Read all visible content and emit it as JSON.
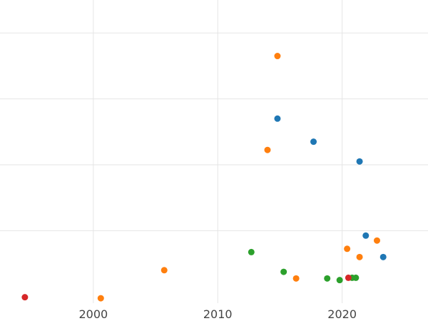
{
  "chart_data": {
    "type": "scatter",
    "title": "",
    "xlabel": "",
    "ylabel": "",
    "xlim": [
      1992.5,
      2026.9
    ],
    "ylim": [
      -0.2,
      9.0
    ],
    "grid": true,
    "x_ticks": [
      2000,
      2010,
      2020
    ],
    "y_grid_values": [
      2,
      4,
      6,
      8
    ],
    "tick_labels": [
      "2000",
      "2010",
      "2020"
    ],
    "colors": {
      "blue": "#1f77b4",
      "orange": "#ff7f0e",
      "green": "#2ca02c",
      "red": "#d62728"
    },
    "series": [
      {
        "color_key": "blue",
        "points": [
          {
            "x": 2014.8,
            "y": 5.4
          },
          {
            "x": 2017.7,
            "y": 4.7
          },
          {
            "x": 2021.4,
            "y": 4.1
          },
          {
            "x": 2021.9,
            "y": 1.85
          },
          {
            "x": 2023.3,
            "y": 1.2
          }
        ]
      },
      {
        "color_key": "orange",
        "points": [
          {
            "x": 2014.8,
            "y": 7.3
          },
          {
            "x": 2014.0,
            "y": 4.45
          },
          {
            "x": 2022.8,
            "y": 1.7
          },
          {
            "x": 2020.4,
            "y": 1.45
          },
          {
            "x": 2021.4,
            "y": 1.2
          },
          {
            "x": 2005.7,
            "y": 0.8
          },
          {
            "x": 2016.3,
            "y": 0.55
          },
          {
            "x": 2000.6,
            "y": -0.05
          }
        ]
      },
      {
        "color_key": "green",
        "points": [
          {
            "x": 2012.7,
            "y": 1.35
          },
          {
            "x": 2015.3,
            "y": 0.75
          },
          {
            "x": 2018.8,
            "y": 0.55
          },
          {
            "x": 2019.8,
            "y": 0.5
          },
          {
            "x": 2020.8,
            "y": 0.57
          },
          {
            "x": 2021.1,
            "y": 0.57
          }
        ]
      },
      {
        "color_key": "red",
        "points": [
          {
            "x": 1994.5,
            "y": -0.02
          },
          {
            "x": 2020.5,
            "y": 0.57
          }
        ]
      }
    ]
  }
}
